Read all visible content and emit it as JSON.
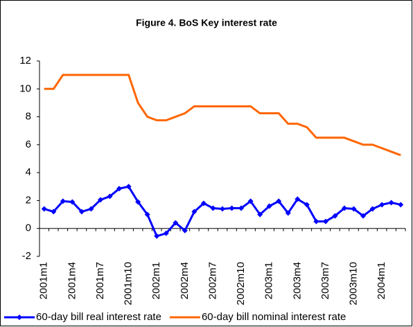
{
  "chart_data": {
    "type": "line",
    "title": "Figure 4. BoS Key interest rate",
    "categories": [
      "2001m1",
      null,
      null,
      "2001m4",
      null,
      null,
      "2001m7",
      null,
      null,
      "2001m10",
      null,
      null,
      "2002m1",
      null,
      null,
      "2002m4",
      null,
      null,
      "2002m7",
      null,
      null,
      "2002m10",
      null,
      null,
      "2003m1",
      null,
      null,
      "2003m4",
      null,
      null,
      "2003m7",
      null,
      null,
      "2003m10",
      null,
      null,
      "2004m1",
      null,
      null
    ],
    "series": [
      {
        "name": "60-day bill real interest rate",
        "color": "#0000ff",
        "marker": true,
        "values": [
          1.4,
          1.2,
          1.95,
          1.9,
          1.2,
          1.4,
          2.05,
          2.3,
          2.85,
          3.0,
          1.9,
          1.0,
          -0.55,
          -0.35,
          0.4,
          -0.15,
          1.2,
          1.8,
          1.45,
          1.4,
          1.45,
          1.45,
          1.95,
          1.0,
          1.6,
          1.95,
          1.1,
          2.1,
          1.7,
          0.5,
          0.5,
          0.9,
          1.45,
          1.4,
          0.9,
          1.4,
          1.7,
          1.85,
          1.7
        ]
      },
      {
        "name": "60-day bill nominal interest rate",
        "color": "#ff6600",
        "marker": false,
        "values": [
          10,
          10,
          11,
          11,
          11,
          11,
          11,
          11,
          11,
          11,
          9.0,
          8.0,
          7.75,
          7.75,
          8.0,
          8.25,
          8.75,
          8.75,
          8.75,
          8.75,
          8.75,
          8.75,
          8.75,
          8.25,
          8.25,
          8.25,
          7.5,
          7.5,
          7.25,
          6.5,
          6.5,
          6.5,
          6.5,
          6.25,
          6.0,
          6.0,
          5.75,
          5.5,
          5.25
        ]
      }
    ],
    "ylim": [
      -2,
      12
    ],
    "yticks": [
      -2,
      0,
      2,
      4,
      6,
      8,
      10,
      12
    ],
    "grid": false,
    "legend": "bottom"
  }
}
